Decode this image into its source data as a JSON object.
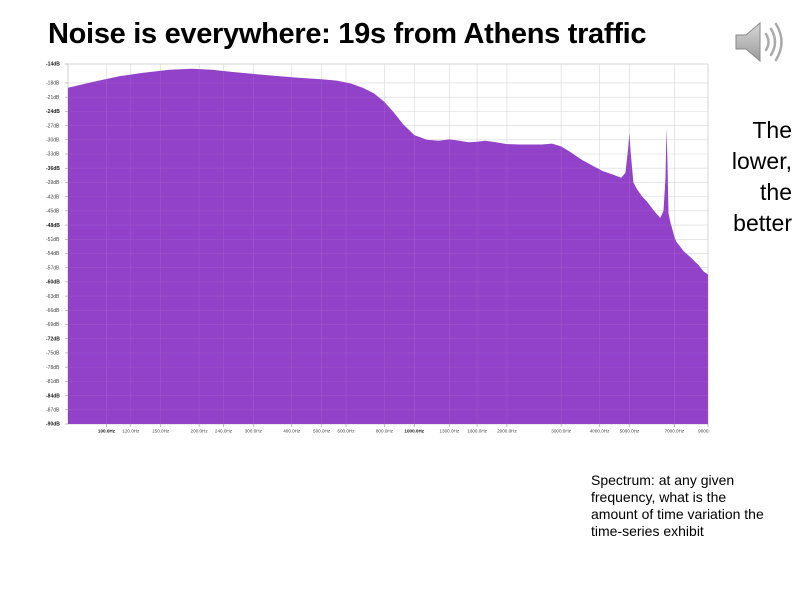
{
  "slide": {
    "title": "Noise is everywhere: 19s from Athens traffic",
    "side_note": [
      "The",
      "lower,",
      "the",
      "better"
    ],
    "caption": "Spectrum: at any given frequency, what is the amount of time variation the time-series exhibit",
    "speaker_icon": "speaker-icon"
  },
  "chart_data": {
    "type": "area",
    "title": "",
    "xlabel": "",
    "ylabel": "",
    "x_scale": "log",
    "xlim": [
      75,
      9000
    ],
    "ylim": [
      -90,
      -14
    ],
    "grid": true,
    "fill_color": "#8a34c4",
    "y_ticks": [
      {
        "v": -14,
        "label": "-14dB",
        "bold": true
      },
      {
        "v": -18,
        "label": "-18dB"
      },
      {
        "v": -21,
        "label": "-21dB"
      },
      {
        "v": -24,
        "label": "-24dB",
        "bold": true
      },
      {
        "v": -27,
        "label": "-27dB"
      },
      {
        "v": -30,
        "label": "-30dB"
      },
      {
        "v": -33,
        "label": "-33dB"
      },
      {
        "v": -36,
        "label": "-36dB",
        "bold": true
      },
      {
        "v": -39,
        "label": "-39dB"
      },
      {
        "v": -42,
        "label": "-42dB"
      },
      {
        "v": -45,
        "label": "-45dB"
      },
      {
        "v": -48,
        "label": "-48dB",
        "bold": true
      },
      {
        "v": -51,
        "label": "-51dB"
      },
      {
        "v": -54,
        "label": "-54dB"
      },
      {
        "v": -57,
        "label": "-57dB"
      },
      {
        "v": -60,
        "label": "-60dB",
        "bold": true
      },
      {
        "v": -63,
        "label": "-63dB"
      },
      {
        "v": -66,
        "label": "-66dB"
      },
      {
        "v": -69,
        "label": "-69dB"
      },
      {
        "v": -72,
        "label": "-72dB",
        "bold": true
      },
      {
        "v": -75,
        "label": "-75dB"
      },
      {
        "v": -78,
        "label": "-78dB"
      },
      {
        "v": -81,
        "label": "-81dB"
      },
      {
        "v": -84,
        "label": "-84dB",
        "bold": true
      },
      {
        "v": -87,
        "label": "-87dB"
      },
      {
        "v": -90,
        "label": "-90dB",
        "bold": true
      }
    ],
    "x_ticks": [
      {
        "v": 100,
        "label": "100.0Hz",
        "bold": true
      },
      {
        "v": 120,
        "label": "120.0Hz"
      },
      {
        "v": 150,
        "label": "150.0Hz"
      },
      {
        "v": 200,
        "label": "200.0Hz"
      },
      {
        "v": 240,
        "label": "240.0Hz"
      },
      {
        "v": 300,
        "label": "300.0Hz"
      },
      {
        "v": 400,
        "label": "400.0Hz"
      },
      {
        "v": 500,
        "label": "500.0Hz"
      },
      {
        "v": 600,
        "label": "600.0Hz"
      },
      {
        "v": 800,
        "label": "800.0Hz"
      },
      {
        "v": 1000,
        "label": "1000.0Hz",
        "bold": true
      },
      {
        "v": 1300,
        "label": "1300.0Hz"
      },
      {
        "v": 1600,
        "label": "1600.0Hz"
      },
      {
        "v": 2000,
        "label": "2000.0Hz"
      },
      {
        "v": 3000,
        "label": "3000.0Hz"
      },
      {
        "v": 4000,
        "label": "4000.0Hz"
      },
      {
        "v": 5000,
        "label": "5000.0Hz"
      },
      {
        "v": 7000,
        "label": "7000.0Hz"
      },
      {
        "v": 9000,
        "label": "9000.0Hz"
      }
    ],
    "series": [
      {
        "x": [
          75,
          90,
          110,
          130,
          160,
          190,
          220,
          260,
          300,
          350,
          420,
          500,
          560,
          620,
          680,
          740,
          800,
          860,
          920,
          1000,
          1100,
          1200,
          1300,
          1400,
          1500,
          1600,
          1700,
          1800,
          2000,
          2200,
          2400,
          2600,
          2800,
          3000,
          3200,
          3500,
          3800,
          4100,
          4400,
          4700,
          4850,
          4950,
          5000,
          5050,
          5150,
          5300,
          5500,
          5700,
          5900,
          6100,
          6300,
          6450,
          6550,
          6600,
          6650,
          6700,
          6800,
          6900,
          7000,
          7100,
          7300,
          7500,
          7800,
          8100,
          8400,
          8700,
          8900,
          9000
        ],
        "values": [
          -19.0,
          -17.8,
          -16.6,
          -15.9,
          -15.2,
          -15.0,
          -15.2,
          -15.7,
          -16.1,
          -16.5,
          -16.9,
          -17.2,
          -17.5,
          -18.1,
          -19.0,
          -20.2,
          -22.0,
          -24.3,
          -26.7,
          -29.0,
          -30.0,
          -30.2,
          -29.9,
          -30.2,
          -30.5,
          -30.4,
          -30.2,
          -30.4,
          -30.9,
          -31.0,
          -31.0,
          -31.0,
          -30.8,
          -31.4,
          -32.5,
          -34.2,
          -35.5,
          -36.6,
          -37.3,
          -38.0,
          -37.0,
          -32.0,
          -28.5,
          -33.0,
          -39.0,
          -40.5,
          -42.0,
          -43.0,
          -44.3,
          -45.5,
          -46.5,
          -45.0,
          -38.0,
          -27.5,
          -35.0,
          -45.5,
          -47.5,
          -49.0,
          -50.5,
          -51.5,
          -52.5,
          -53.5,
          -54.5,
          -55.5,
          -56.5,
          -57.8,
          -58.2,
          -58.5
        ]
      }
    ]
  }
}
